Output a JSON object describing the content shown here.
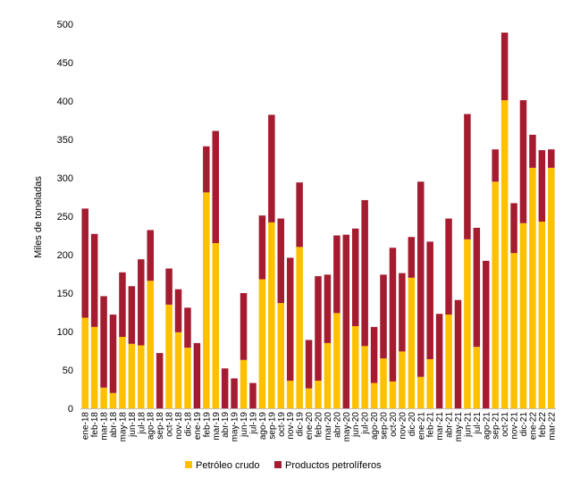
{
  "chart_data": {
    "type": "bar",
    "stacked": true,
    "ylabel": "Miles de toneladas",
    "ylim": [
      0,
      500
    ],
    "yticks": [
      0,
      50,
      100,
      150,
      200,
      250,
      300,
      350,
      400,
      450,
      500
    ],
    "grid": false,
    "legend_position": "bottom",
    "categories": [
      "ene-18",
      "feb-18",
      "mar-18",
      "abr-18",
      "may-18",
      "jun-18",
      "jul-18",
      "ago-18",
      "sep-18",
      "oct-18",
      "nov-18",
      "dic-18",
      "ene-19",
      "feb-19",
      "mar-19",
      "abr-19",
      "may-19",
      "jun-19",
      "jul-19",
      "ago-19",
      "sep-19",
      "oct-19",
      "nov-19",
      "dic-19",
      "ene-20",
      "feb-20",
      "mar-20",
      "abr-20",
      "may-20",
      "jun-20",
      "jul-20",
      "ago-20",
      "sep-20",
      "oct-20",
      "nov-20",
      "dic-20",
      "ene-21",
      "feb-21",
      "mar-21",
      "abr-21",
      "may-21",
      "jun-21",
      "jul-21",
      "ago-21",
      "sep-21",
      "oct-21",
      "nov-21",
      "dic-21",
      "ene-22",
      "feb-22",
      "mar-22"
    ],
    "series": [
      {
        "name": "Petróleo crudo",
        "color": "#FFC000",
        "values": [
          118,
          106,
          27,
          20,
          93,
          84,
          82,
          166,
          0,
          135,
          99,
          79,
          0,
          281,
          215,
          0,
          0,
          63,
          0,
          168,
          242,
          137,
          36,
          210,
          26,
          36,
          85,
          124,
          0,
          107,
          81,
          33,
          65,
          35,
          74,
          170,
          41,
          64,
          0,
          122,
          0,
          220,
          80,
          0,
          295,
          401,
          202,
          241,
          313,
          243,
          313
        ]
      },
      {
        "name": "Productos petrolíferos",
        "color": "#A51C30",
        "values": [
          142,
          121,
          119,
          102,
          84,
          75,
          112,
          66,
          72,
          47,
          56,
          52,
          85,
          60,
          146,
          52,
          39,
          87,
          33,
          83,
          140,
          110,
          160,
          84,
          63,
          136,
          89,
          101,
          226,
          127,
          190,
          73,
          109,
          174,
          102,
          53,
          254,
          153,
          123,
          125,
          141,
          163,
          155,
          192,
          42,
          88,
          65,
          160,
          43,
          93,
          24
        ]
      }
    ]
  }
}
